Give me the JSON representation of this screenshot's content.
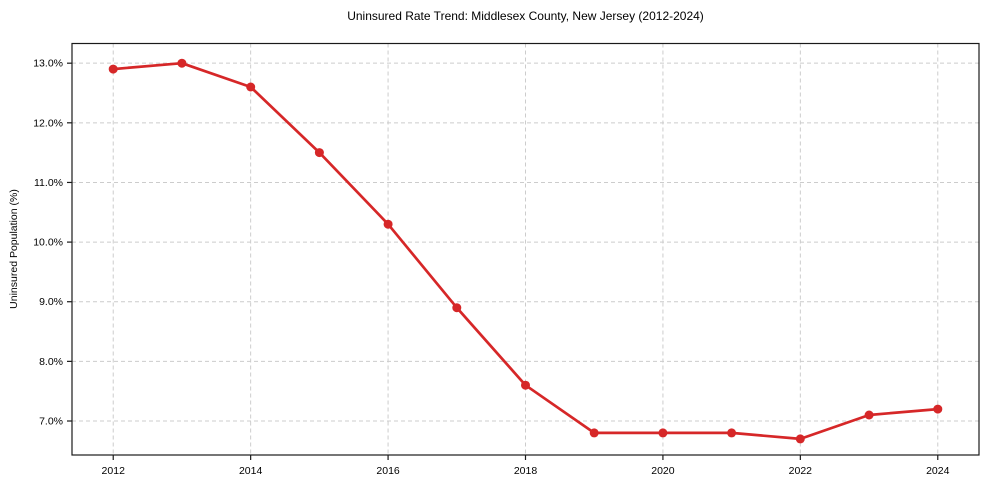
{
  "chart_data": {
    "type": "line",
    "title": "Uninsured Rate Trend: Middlesex County, New Jersey (2012-2024)",
    "xlabel": "",
    "ylabel": "Uninsured Population (%)",
    "x": [
      2012,
      2013,
      2014,
      2015,
      2016,
      2017,
      2018,
      2019,
      2020,
      2021,
      2022,
      2023,
      2024
    ],
    "series": [
      {
        "name": "Uninsured rate",
        "values": [
          12.9,
          13.0,
          12.6,
          11.5,
          10.3,
          8.9,
          7.6,
          6.8,
          6.8,
          6.8,
          6.7,
          7.1,
          7.2
        ]
      }
    ],
    "x_ticks": [
      2012,
      2014,
      2016,
      2018,
      2020,
      2022,
      2024
    ],
    "x_tick_labels": [
      "2012",
      "2014",
      "2016",
      "2018",
      "2020",
      "2022",
      "2024"
    ],
    "y_ticks": [
      7.0,
      8.0,
      9.0,
      10.0,
      11.0,
      12.0,
      13.0
    ],
    "y_tick_labels": [
      "7.0%",
      "8.0%",
      "9.0%",
      "10.0%",
      "11.0%",
      "12.0%",
      "13.0%"
    ],
    "xlim": [
      2011.4,
      2024.6
    ],
    "ylim": [
      6.43,
      13.33
    ],
    "grid": true,
    "legend": "none",
    "colors": {
      "line": "#d62728",
      "marker": "#d62728",
      "grid": "#cccccc",
      "spine": "#1a1a1a",
      "tick_text": "#000000",
      "background": "#ffffff"
    }
  }
}
